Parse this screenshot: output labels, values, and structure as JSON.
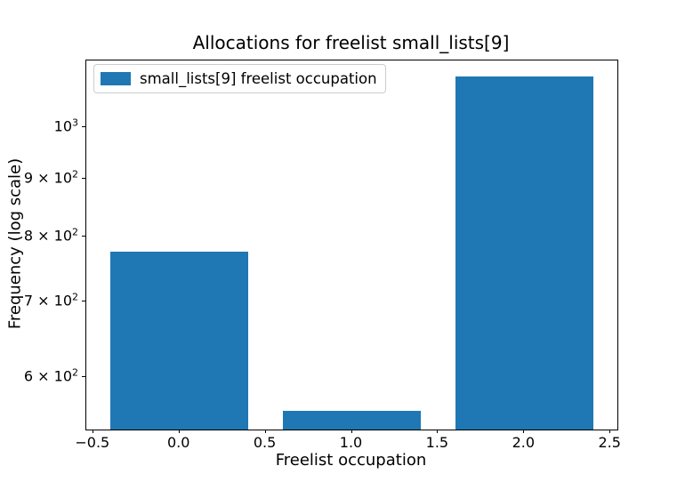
{
  "chart_data": {
    "type": "bar",
    "title": "Allocations for freelist small_lists[9]",
    "xlabel": "Freelist occupation",
    "ylabel": "Frequency (log scale)",
    "yscale": "log",
    "grid": false,
    "bar_color": "#1f77b4",
    "bar_width": 0.8,
    "x": [
      0,
      1,
      2
    ],
    "values": [
      775,
      560,
      1110
    ],
    "xlim": [
      -0.54,
      2.54
    ],
    "ylim": [
      539,
      1147
    ],
    "xticks": [
      {
        "value": -0.5,
        "label": "−0.5"
      },
      {
        "value": 0.0,
        "label": "0.0"
      },
      {
        "value": 0.5,
        "label": "0.5"
      },
      {
        "value": 1.0,
        "label": "1.0"
      },
      {
        "value": 1.5,
        "label": "1.5"
      },
      {
        "value": 2.0,
        "label": "2.0"
      },
      {
        "value": 2.5,
        "label": "2.5"
      }
    ],
    "yticks": [
      {
        "value": 1000,
        "base": "10",
        "exp": "3"
      },
      {
        "value": 900,
        "base": "9 × 10",
        "exp": "2"
      },
      {
        "value": 800,
        "base": "8 × 10",
        "exp": "2"
      },
      {
        "value": 700,
        "base": "7 × 10",
        "exp": "2"
      },
      {
        "value": 600,
        "base": "6 × 10",
        "exp": "2"
      }
    ],
    "legend": {
      "position": "upper left",
      "entries": [
        {
          "label": "small_lists[9] freelist occupation",
          "color": "#1f77b4"
        }
      ]
    }
  }
}
